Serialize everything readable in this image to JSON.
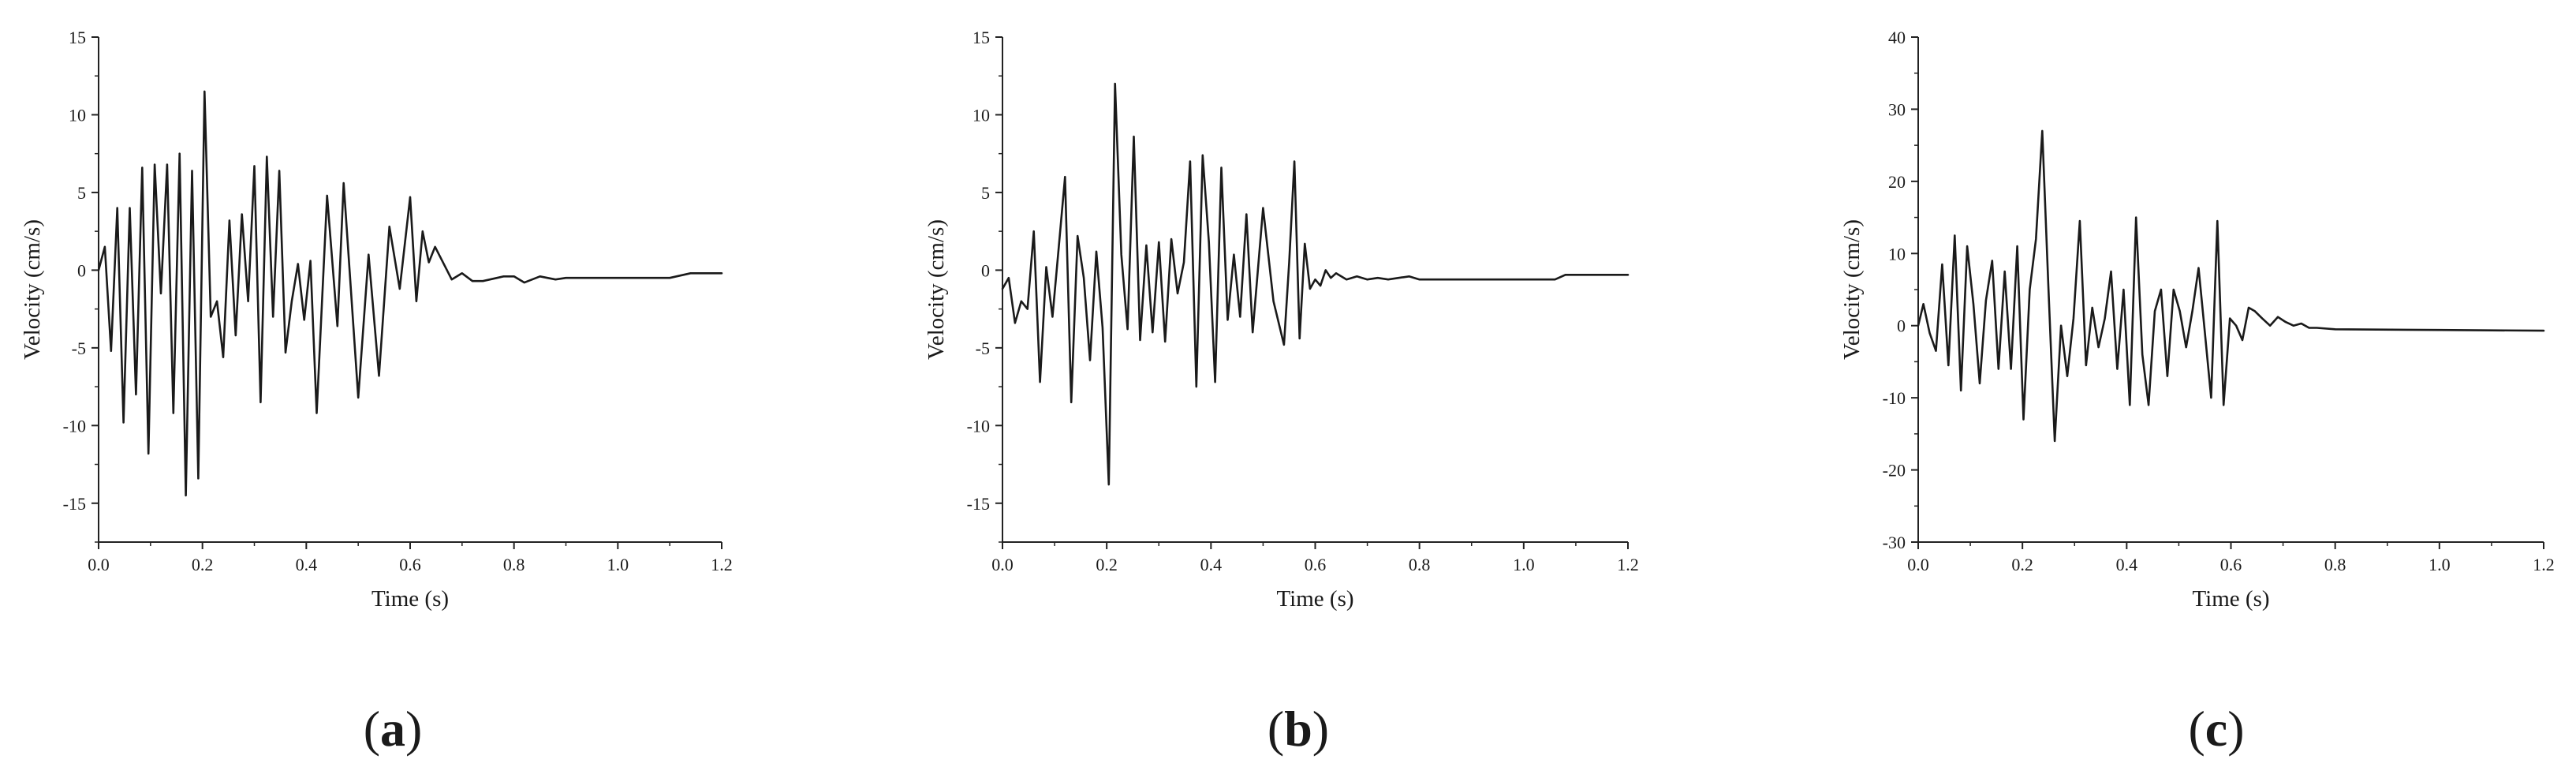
{
  "figure": {
    "captions": [
      {
        "open": "(",
        "letter": "a",
        "close": ")"
      },
      {
        "open": "(",
        "letter": "b",
        "close": ")"
      },
      {
        "open": "(",
        "letter": "c",
        "close": ")"
      }
    ]
  },
  "chart_data": [
    {
      "type": "line",
      "xlabel": "Time (s)",
      "ylabel": "Velocity (cm/s)",
      "xlim": [
        0,
        1.2
      ],
      "ylim": [
        -17.5,
        15
      ],
      "xticks": [
        "0.0",
        "0.2",
        "0.4",
        "0.6",
        "0.8",
        "1.0",
        "1.2"
      ],
      "yticks": [
        "-15",
        "-10",
        "-5",
        "0",
        "5",
        "10",
        "15"
      ],
      "grid": false,
      "line_color": "#1a1a1a",
      "series": [
        {
          "x": [
            0.0,
            0.012,
            0.024,
            0.036,
            0.048,
            0.06,
            0.072,
            0.084,
            0.096,
            0.108,
            0.12,
            0.132,
            0.144,
            0.156,
            0.168,
            0.18,
            0.192,
            0.204,
            0.216,
            0.228,
            0.24,
            0.252,
            0.264,
            0.276,
            0.288,
            0.3,
            0.312,
            0.324,
            0.336,
            0.348,
            0.36,
            0.372,
            0.384,
            0.396,
            0.408,
            0.42,
            0.44,
            0.46,
            0.472,
            0.5,
            0.52,
            0.54,
            0.56,
            0.58,
            0.6,
            0.612,
            0.624,
            0.636,
            0.648,
            0.68,
            0.7,
            0.72,
            0.74,
            0.78,
            0.8,
            0.82,
            0.85,
            0.88,
            0.9,
            0.92,
            0.95,
            1.0,
            1.1,
            1.14,
            1.16,
            1.2
          ],
          "values": [
            0,
            1.5,
            -5.2,
            4.0,
            -9.8,
            4.0,
            -8.0,
            6.6,
            -11.8,
            6.8,
            -1.5,
            6.8,
            -9.2,
            7.5,
            -14.5,
            6.4,
            -13.4,
            11.5,
            -3.0,
            -2.0,
            -5.6,
            3.2,
            -4.2,
            3.6,
            -2.0,
            6.7,
            -8.5,
            7.3,
            -3.0,
            6.4,
            -5.3,
            -2.0,
            0.4,
            -3.2,
            0.6,
            -9.2,
            4.8,
            -3.6,
            5.6,
            -8.2,
            1.0,
            -6.8,
            2.8,
            -1.2,
            4.7,
            -2.0,
            2.5,
            0.5,
            1.5,
            -0.6,
            -0.2,
            -0.7,
            -0.7,
            -0.4,
            -0.4,
            -0.8,
            -0.4,
            -0.6,
            -0.5,
            -0.5,
            -0.5,
            -0.5,
            -0.5,
            -0.2,
            -0.2,
            -0.2
          ]
        }
      ]
    },
    {
      "type": "line",
      "xlabel": "Time (s)",
      "ylabel": "Velocity (cm/s)",
      "xlim": [
        0,
        1.2
      ],
      "ylim": [
        -17.5,
        15
      ],
      "xticks": [
        "0.0",
        "0.2",
        "0.4",
        "0.6",
        "0.8",
        "1.0",
        "1.2"
      ],
      "yticks": [
        "-15",
        "-10",
        "-5",
        "0",
        "5",
        "10",
        "15"
      ],
      "grid": false,
      "line_color": "#1a1a1a",
      "series": [
        {
          "x": [
            0.0,
            0.012,
            0.024,
            0.036,
            0.048,
            0.06,
            0.072,
            0.084,
            0.096,
            0.108,
            0.12,
            0.132,
            0.144,
            0.156,
            0.168,
            0.18,
            0.192,
            0.204,
            0.216,
            0.228,
            0.24,
            0.252,
            0.264,
            0.276,
            0.288,
            0.3,
            0.312,
            0.324,
            0.336,
            0.348,
            0.36,
            0.372,
            0.384,
            0.396,
            0.408,
            0.42,
            0.432,
            0.444,
            0.456,
            0.468,
            0.48,
            0.5,
            0.52,
            0.54,
            0.55,
            0.56,
            0.57,
            0.58,
            0.59,
            0.6,
            0.61,
            0.62,
            0.63,
            0.64,
            0.66,
            0.68,
            0.7,
            0.72,
            0.74,
            0.76,
            0.78,
            0.8,
            0.82,
            0.85,
            0.9,
            1.06,
            1.08,
            1.2
          ],
          "values": [
            -1.2,
            -0.5,
            -3.4,
            -2.0,
            -2.5,
            2.5,
            -7.2,
            0.2,
            -3.0,
            1.5,
            6.0,
            -8.5,
            2.2,
            -0.5,
            -5.8,
            1.2,
            -3.7,
            -13.8,
            12.0,
            1.0,
            -3.8,
            8.6,
            -4.5,
            1.6,
            -4.0,
            1.8,
            -4.6,
            2.0,
            -1.5,
            0.5,
            7.0,
            -7.5,
            7.4,
            1.8,
            -7.2,
            6.6,
            -3.2,
            1.0,
            -3.0,
            3.6,
            -4.0,
            4.0,
            -2.0,
            -4.8,
            0.5,
            7.0,
            -4.4,
            1.7,
            -1.2,
            -0.6,
            -1.0,
            0.0,
            -0.5,
            -0.2,
            -0.6,
            -0.4,
            -0.6,
            -0.5,
            -0.6,
            -0.5,
            -0.4,
            -0.6,
            -0.6,
            -0.6,
            -0.6,
            -0.6,
            -0.3,
            -0.3
          ]
        }
      ]
    },
    {
      "type": "line",
      "xlabel": "Time (s)",
      "ylabel": "Velocity (cm/s)",
      "xlim": [
        0,
        1.2
      ],
      "ylim": [
        -30,
        40
      ],
      "xticks": [
        "0.0",
        "0.2",
        "0.4",
        "0.6",
        "0.8",
        "1.0",
        "1.2"
      ],
      "yticks": [
        "-30",
        "-20",
        "-10",
        "0",
        "10",
        "20",
        "30",
        "40"
      ],
      "grid": false,
      "line_color": "#1a1a1a",
      "series": [
        {
          "x": [
            0.0,
            0.01,
            0.022,
            0.034,
            0.046,
            0.058,
            0.07,
            0.082,
            0.094,
            0.106,
            0.118,
            0.13,
            0.142,
            0.154,
            0.166,
            0.178,
            0.19,
            0.202,
            0.214,
            0.226,
            0.238,
            0.25,
            0.262,
            0.274,
            0.286,
            0.298,
            0.31,
            0.322,
            0.334,
            0.346,
            0.358,
            0.37,
            0.382,
            0.394,
            0.406,
            0.418,
            0.43,
            0.442,
            0.454,
            0.466,
            0.478,
            0.49,
            0.502,
            0.514,
            0.526,
            0.538,
            0.55,
            0.562,
            0.574,
            0.586,
            0.598,
            0.61,
            0.622,
            0.634,
            0.646,
            0.66,
            0.675,
            0.69,
            0.705,
            0.72,
            0.735,
            0.75,
            0.765,
            0.8,
            1.0,
            1.2
          ],
          "values": [
            0,
            3.0,
            -1.0,
            -3.5,
            8.5,
            -5.5,
            12.5,
            -9.0,
            11.0,
            3.0,
            -8.0,
            3.5,
            9.0,
            -6.0,
            7.5,
            -6.0,
            11.0,
            -13.0,
            5.0,
            12.0,
            27.0,
            5.0,
            -16.0,
            0.0,
            -7.0,
            1.0,
            14.5,
            -5.5,
            2.5,
            -3.0,
            1.0,
            7.5,
            -6.0,
            5.0,
            -11.0,
            15.0,
            -4.0,
            -11.0,
            2.0,
            5.0,
            -7.0,
            5.0,
            2.0,
            -3.0,
            2.0,
            8.0,
            -1.0,
            -10.0,
            14.5,
            -11.0,
            1.0,
            0.0,
            -2.0,
            2.5,
            2.0,
            1.0,
            0.0,
            1.2,
            0.5,
            0.0,
            0.3,
            -0.3,
            -0.3,
            -0.5,
            -0.6,
            -0.7
          ]
        }
      ]
    }
  ]
}
